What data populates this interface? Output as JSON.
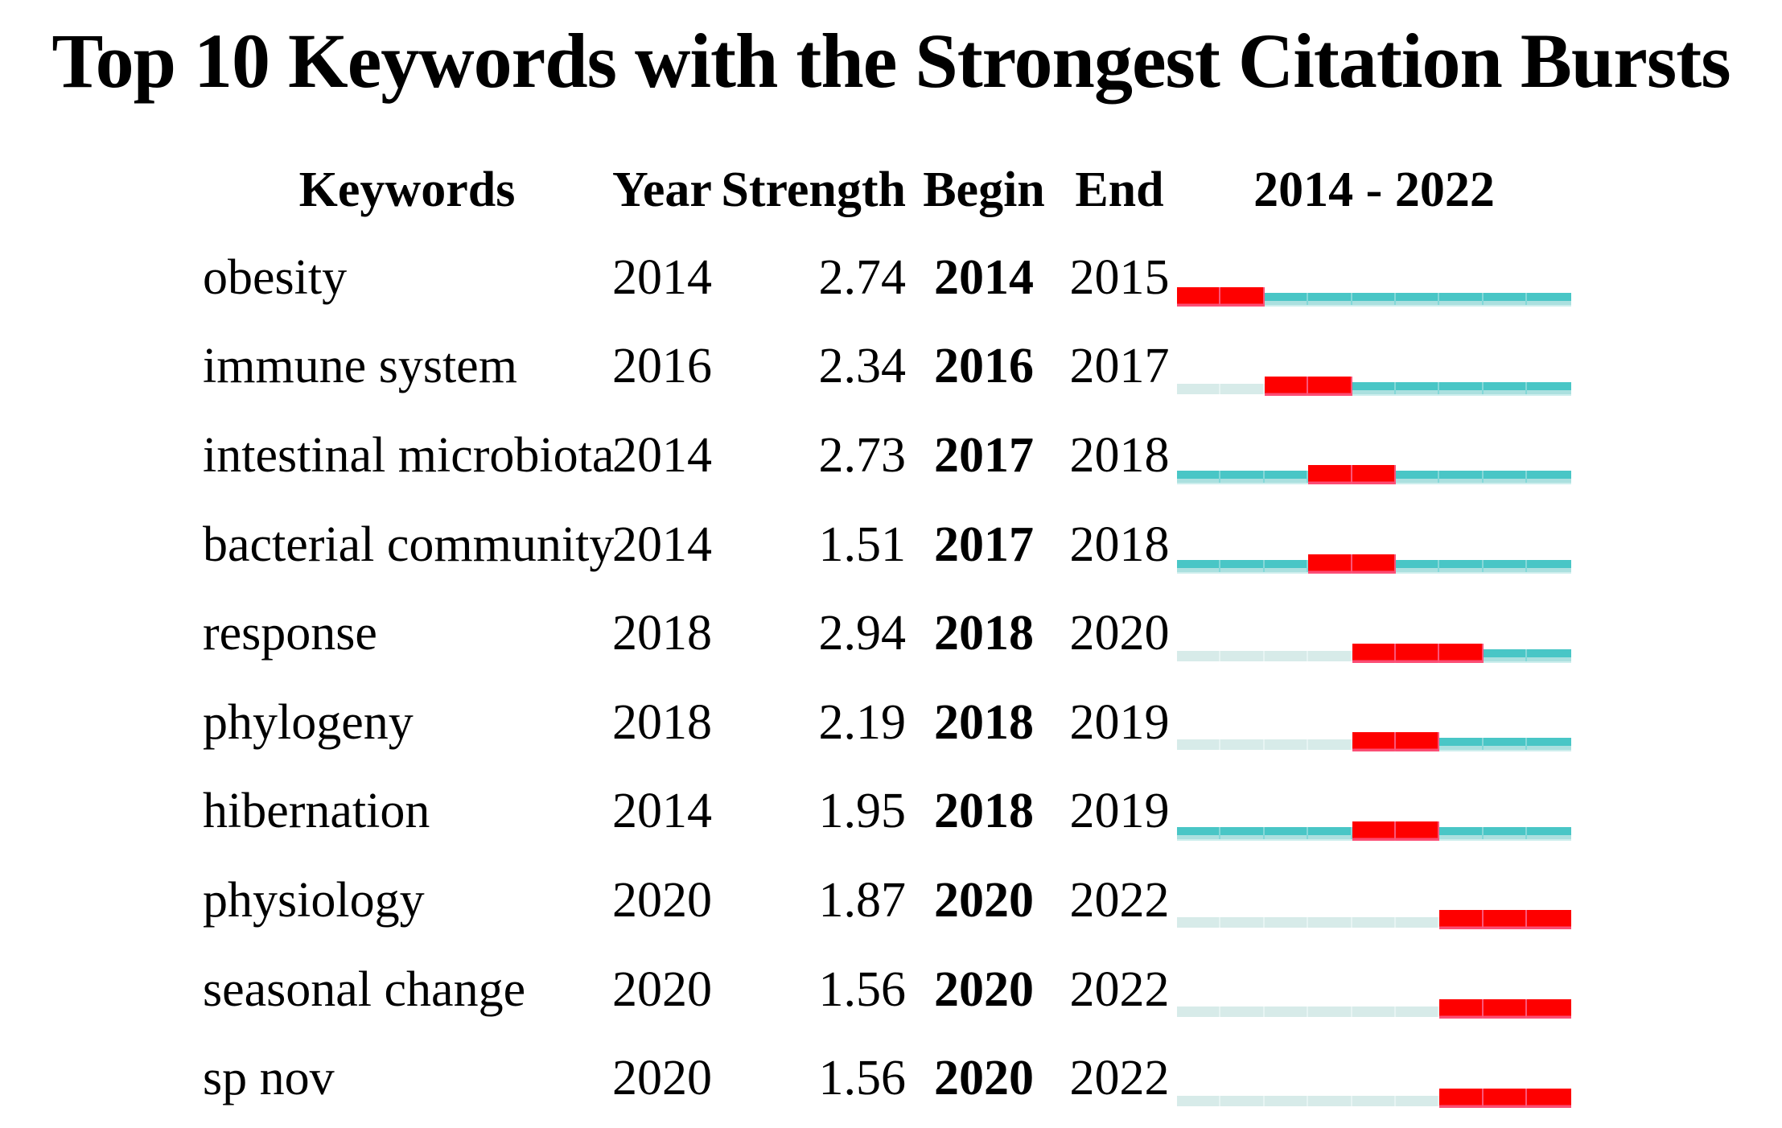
{
  "title": "Top 10 Keywords with the Strongest Citation Bursts",
  "table": {
    "headers": {
      "keywords": "Keywords",
      "year": "Year",
      "strength": "Strength",
      "begin": "Begin",
      "end": "End",
      "range": "2014 - 2022"
    }
  },
  "chart_data": {
    "type": "table",
    "subtype": "citation-burst-timeline",
    "title": "Top 10 Keywords with the Strongest Citation Bursts",
    "columns": [
      "Keywords",
      "Year",
      "Strength",
      "Begin",
      "End",
      "2014 - 2022"
    ],
    "year_axis": {
      "start": 2014,
      "end": 2022
    },
    "legend_semantics": {
      "burst": "years between Begin and End (citation burst)",
      "active": "years from keyword first appearance (Year) outside burst",
      "inactive": "years before keyword first appearance"
    },
    "colors": {
      "burst_red": "#fe0000",
      "active_teal": "#49c6c6",
      "inactive_pale": "#d7ebe9",
      "text": "#000000",
      "background": "#ffffff"
    },
    "rows": [
      {
        "keyword": "obesity",
        "year": "2014",
        "strength": "2.74",
        "begin": "2014",
        "end": "2015"
      },
      {
        "keyword": "immune system",
        "year": "2016",
        "strength": "2.34",
        "begin": "2016",
        "end": "2017"
      },
      {
        "keyword": "intestinal microbiota",
        "year": "2014",
        "strength": "2.73",
        "begin": "2017",
        "end": "2018"
      },
      {
        "keyword": "bacterial community",
        "year": "2014",
        "strength": "1.51",
        "begin": "2017",
        "end": "2018"
      },
      {
        "keyword": "response",
        "year": "2018",
        "strength": "2.94",
        "begin": "2018",
        "end": "2020"
      },
      {
        "keyword": "phylogeny",
        "year": "2018",
        "strength": "2.19",
        "begin": "2018",
        "end": "2019"
      },
      {
        "keyword": "hibernation",
        "year": "2014",
        "strength": "1.95",
        "begin": "2018",
        "end": "2019"
      },
      {
        "keyword": "physiology",
        "year": "2020",
        "strength": "1.87",
        "begin": "2020",
        "end": "2022"
      },
      {
        "keyword": "seasonal change",
        "year": "2020",
        "strength": "1.56",
        "begin": "2020",
        "end": "2022"
      },
      {
        "keyword": "sp nov",
        "year": "2020",
        "strength": "1.56",
        "begin": "2020",
        "end": "2022"
      }
    ]
  }
}
